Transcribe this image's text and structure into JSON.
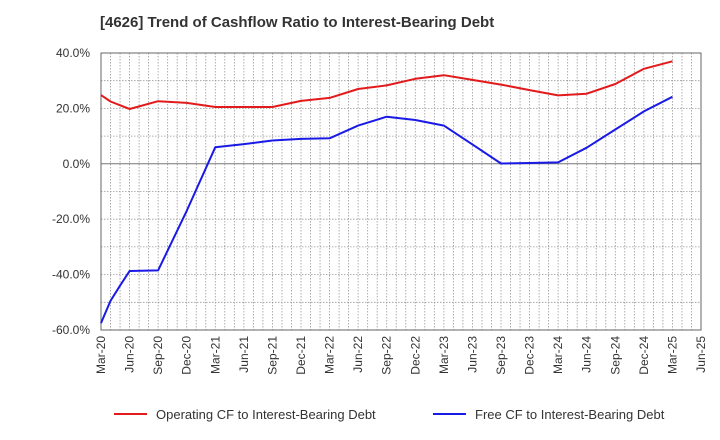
{
  "title": "[4626]  Trend of Cashflow Ratio to Interest-Bearing Debt",
  "chart_data": {
    "type": "line",
    "title": "[4626]  Trend of Cashflow Ratio to Interest-Bearing Debt",
    "xlabel": "",
    "ylabel": "",
    "x_ticks": [
      "Mar-20",
      "Jun-20",
      "Sep-20",
      "Dec-20",
      "Mar-21",
      "Jun-21",
      "Sep-21",
      "Dec-21",
      "Mar-22",
      "Jun-22",
      "Sep-22",
      "Dec-22",
      "Mar-23",
      "Jun-23",
      "Sep-23",
      "Dec-23",
      "Mar-24",
      "Jun-24",
      "Sep-24",
      "Dec-24",
      "Mar-25",
      "Jun-25"
    ],
    "ylim": [
      -60,
      40
    ],
    "y_ticks": [
      40,
      20,
      0,
      -20,
      -40,
      -60
    ],
    "y_tick_labels": [
      "40.0%",
      "20.0%",
      "0.0%",
      "-20.0%",
      "-40.0%",
      "-60.0%"
    ],
    "grid": true,
    "legend_position": "bottom",
    "series": [
      {
        "name": "Operating CF to Interest-Bearing Debt",
        "color": "#e31a1c",
        "points": [
          [
            "Mar-20",
            24.8
          ],
          [
            "Apr-20",
            22.5
          ],
          [
            "Jun-20",
            19.8
          ],
          [
            "Sep-20",
            22.6
          ],
          [
            "Dec-20",
            22.0
          ],
          [
            "Mar-21",
            20.5
          ],
          [
            "Jun-21",
            20.5
          ],
          [
            "Sep-21",
            20.5
          ],
          [
            "Dec-21",
            22.7
          ],
          [
            "Mar-22",
            23.8
          ],
          [
            "Jun-22",
            27.0
          ],
          [
            "Sep-22",
            28.3
          ],
          [
            "Dec-22",
            30.7
          ],
          [
            "Mar-23",
            32.0
          ],
          [
            "Jun-23",
            30.3
          ],
          [
            "Sep-23",
            28.6
          ],
          [
            "Dec-23",
            26.6
          ],
          [
            "Mar-24",
            24.7
          ],
          [
            "Jun-24",
            25.3
          ],
          [
            "Sep-24",
            28.8
          ],
          [
            "Dec-24",
            34.3
          ],
          [
            "Mar-25",
            37.0
          ]
        ]
      },
      {
        "name": "Free CF to Interest-Bearing Debt",
        "color": "#1a1ae6",
        "points": [
          [
            "Mar-20",
            -57.5
          ],
          [
            "Apr-20",
            -49.5
          ],
          [
            "May-20",
            -44.0
          ],
          [
            "Jun-20",
            -38.7
          ],
          [
            "Sep-20",
            -38.5
          ],
          [
            "Dec-20",
            -17.0
          ],
          [
            "Mar-21",
            6.0
          ],
          [
            "Jun-21",
            7.1
          ],
          [
            "Sep-21",
            8.4
          ],
          [
            "Dec-21",
            9.0
          ],
          [
            "Mar-22",
            9.2
          ],
          [
            "Jun-22",
            13.8
          ],
          [
            "Sep-22",
            17.0
          ],
          [
            "Dec-22",
            15.8
          ],
          [
            "Mar-23",
            13.8
          ],
          [
            "Jun-23",
            7.0
          ],
          [
            "Sep-23",
            0.1
          ],
          [
            "Dec-23",
            0.3
          ],
          [
            "Mar-24",
            0.5
          ],
          [
            "Jun-24",
            5.8
          ],
          [
            "Sep-24",
            12.4
          ],
          [
            "Dec-24",
            18.9
          ],
          [
            "Mar-25",
            24.2
          ]
        ]
      }
    ]
  }
}
